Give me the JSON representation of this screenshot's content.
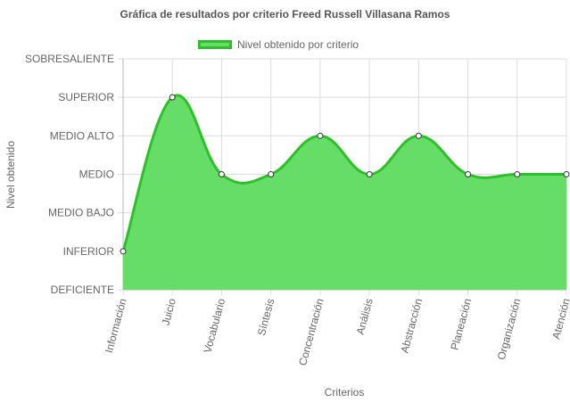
{
  "chart_data": {
    "type": "area",
    "title": "Gráfica de resultados por criterio Freed Russell Villasana Ramos",
    "xlabel": "Criterios",
    "ylabel": "Nivel obtenido",
    "y_levels": [
      "DEFICIENTE",
      "INFERIOR",
      "MEDIO BAJO",
      "MEDIO",
      "MEDIO ALTO",
      "SUPERIOR",
      "SOBRESALIENTE"
    ],
    "categories": [
      "Información",
      "Juicio",
      "Vocabulario",
      "Síntesis",
      "Concentración",
      "Análisis",
      "Abstracción",
      "Planeación",
      "Organización",
      "Atención"
    ],
    "series": [
      {
        "name": "Nivel obtenido por criterio",
        "values": [
          "INFERIOR",
          "SUPERIOR",
          "MEDIO",
          "MEDIO",
          "MEDIO ALTO",
          "MEDIO",
          "MEDIO ALTO",
          "MEDIO",
          "MEDIO",
          "MEDIO"
        ],
        "line_color": "#2ec02a",
        "fill_color": "#66dd66"
      }
    ],
    "grid": true,
    "legend": "top"
  }
}
